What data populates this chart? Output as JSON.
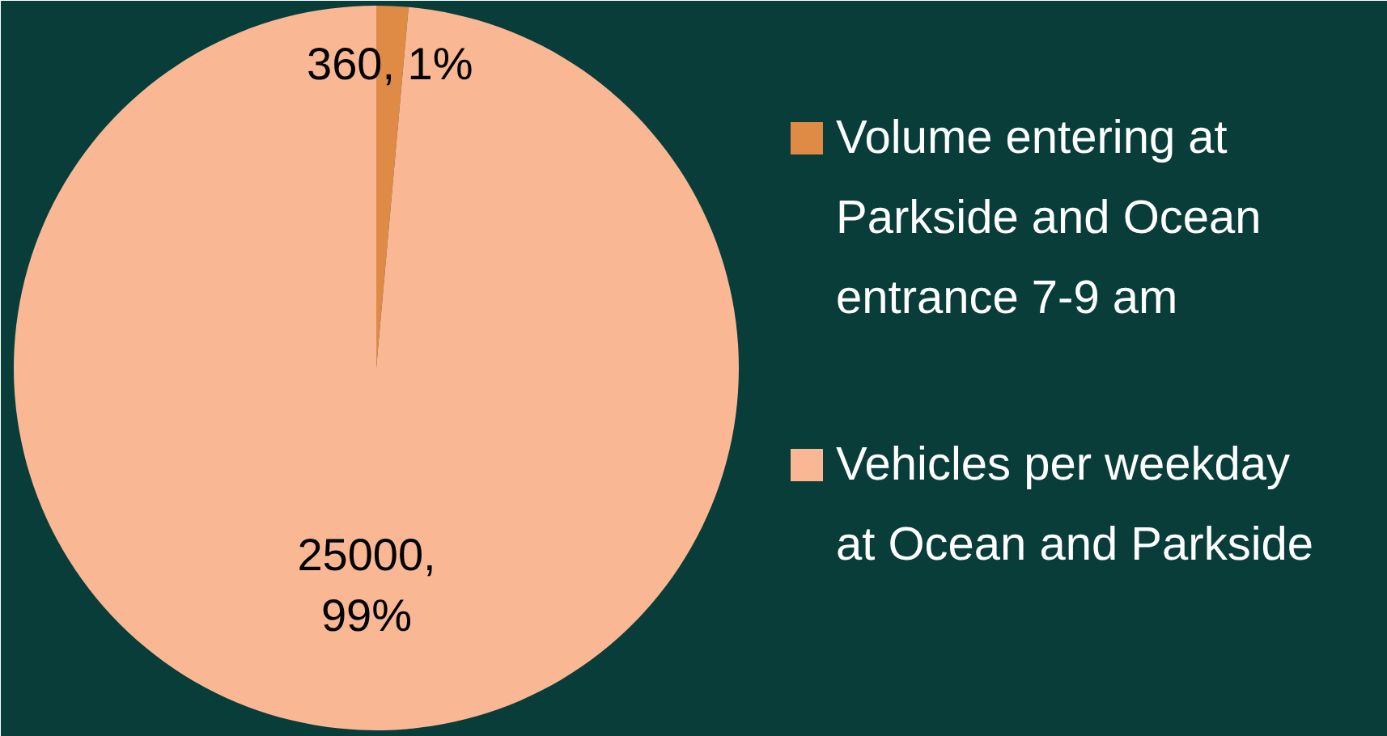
{
  "chart_data": {
    "type": "pie",
    "categories": [
      "Volume entering at Parkside and Ocean entrance 7-9 am",
      "Vehicles per weekday at Ocean and Parkside"
    ],
    "values": [
      360,
      25000
    ],
    "colors": [
      "#e08b45",
      "#f9b893"
    ],
    "value_labels": [
      "360, 1%",
      "25000,\n99%"
    ],
    "legend": "right"
  }
}
